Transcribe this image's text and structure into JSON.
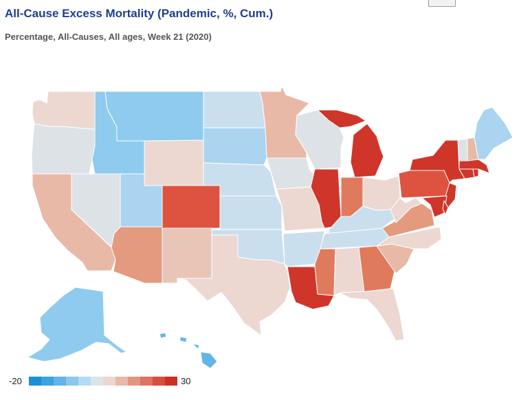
{
  "header": {
    "title": "All-Cause Excess Mortality (Pandemic, %, Cum.)",
    "subtitle": "Percentage, All-Causes, All ages, Week 21 (2020)"
  },
  "legend": {
    "min_label": "-20",
    "max_label": "30",
    "colors": [
      "#1a8fd6",
      "#3ca2e0",
      "#62b5e8",
      "#8ac8ef",
      "#b4dbf3",
      "#dde4ea",
      "#ecd6cf",
      "#e9b8a7",
      "#e49580",
      "#df7260",
      "#d94d3d",
      "#cf2e22"
    ]
  },
  "palette": {
    "strong_red": "#d0352a",
    "red": "#dd5340",
    "orange_red": "#e07a5c",
    "salmon": "#e49a7e",
    "light_salmon": "#e9b9a7",
    "blush": "#ecd8d1",
    "neutral": "#dde2e7",
    "pale_blue": "#c9dfee",
    "light_blue": "#aad4f0",
    "blue": "#8ecbee"
  },
  "states": [
    {
      "code": "WA",
      "fill": "#ecd8d1"
    },
    {
      "code": "OR",
      "fill": "#dde2e7"
    },
    {
      "code": "CA",
      "fill": "#e9b9a7"
    },
    {
      "code": "NV",
      "fill": "#dde2e7"
    },
    {
      "code": "ID",
      "fill": "#8ecbee"
    },
    {
      "code": "MT",
      "fill": "#8ecbee"
    },
    {
      "code": "WY",
      "fill": "#ecd8d1"
    },
    {
      "code": "UT",
      "fill": "#aad4f0"
    },
    {
      "code": "AZ",
      "fill": "#e49a7e"
    },
    {
      "code": "CO",
      "fill": "#dd5340"
    },
    {
      "code": "NM",
      "fill": "#e9c5b8"
    },
    {
      "code": "ND",
      "fill": "#c9dfee"
    },
    {
      "code": "SD",
      "fill": "#aad4f0"
    },
    {
      "code": "NE",
      "fill": "#c9dfee"
    },
    {
      "code": "KS",
      "fill": "#c9dfee"
    },
    {
      "code": "OK",
      "fill": "#c9dfee"
    },
    {
      "code": "TX",
      "fill": "#ecd8d1"
    },
    {
      "code": "MN",
      "fill": "#e9b9a7"
    },
    {
      "code": "IA",
      "fill": "#dde2e7"
    },
    {
      "code": "MO",
      "fill": "#ecd8d1"
    },
    {
      "code": "AR",
      "fill": "#c9dfee"
    },
    {
      "code": "LA",
      "fill": "#d0352a"
    },
    {
      "code": "WI",
      "fill": "#dde2e7"
    },
    {
      "code": "IL",
      "fill": "#d0352a"
    },
    {
      "code": "MI",
      "fill": "#d0352a"
    },
    {
      "code": "IN",
      "fill": "#e07a5c"
    },
    {
      "code": "OH",
      "fill": "#ecd8d1"
    },
    {
      "code": "KY",
      "fill": "#c9dfee"
    },
    {
      "code": "TN",
      "fill": "#c9dfee"
    },
    {
      "code": "MS",
      "fill": "#e07a5c"
    },
    {
      "code": "AL",
      "fill": "#ecd8d1"
    },
    {
      "code": "GA",
      "fill": "#e07a5c"
    },
    {
      "code": "FL",
      "fill": "#ecd8d1"
    },
    {
      "code": "SC",
      "fill": "#e9b9a7"
    },
    {
      "code": "NC",
      "fill": "#ecd8d1"
    },
    {
      "code": "VA",
      "fill": "#e49a7e"
    },
    {
      "code": "WV",
      "fill": "#ecd8d1"
    },
    {
      "code": "PA",
      "fill": "#dd5340"
    },
    {
      "code": "NY",
      "fill": "#d0352a"
    },
    {
      "code": "NJ",
      "fill": "#d0352a"
    },
    {
      "code": "MD",
      "fill": "#d0352a"
    },
    {
      "code": "DE",
      "fill": "#d0352a"
    },
    {
      "code": "CT",
      "fill": "#d0352a"
    },
    {
      "code": "RI",
      "fill": "#d0352a"
    },
    {
      "code": "MA",
      "fill": "#d0352a"
    },
    {
      "code": "VT",
      "fill": "#dde2e7"
    },
    {
      "code": "NH",
      "fill": "#e9b9a7"
    },
    {
      "code": "ME",
      "fill": "#aad4f0"
    },
    {
      "code": "AK",
      "fill": "#8ecbee"
    },
    {
      "code": "HI",
      "fill": "#62b5e8"
    }
  ]
}
